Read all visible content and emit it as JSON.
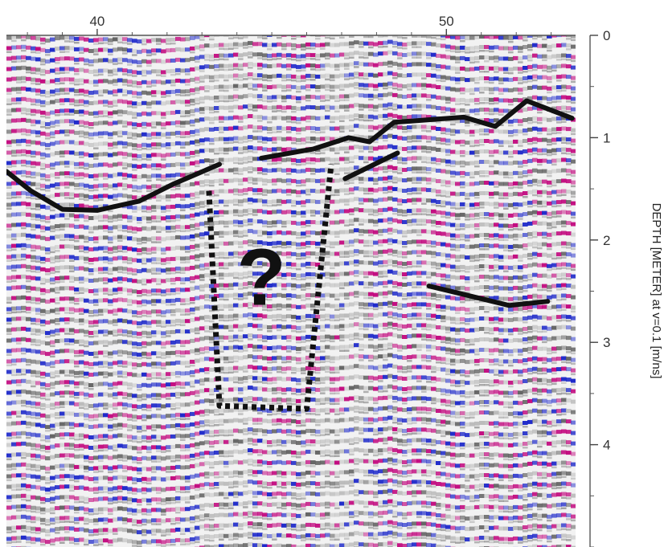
{
  "chart_data": {
    "type": "heatmap",
    "title": "",
    "xlabel": "",
    "ylabel": "DEPTH [METER] at v=0.1 [m/ns]",
    "x_ticks": [
      40,
      50
    ],
    "x_minor_step": 1,
    "xlim": [
      37.4,
      53.7
    ],
    "y_ticks": [
      0,
      1,
      2,
      3,
      4
    ],
    "y_minor_step": 0.5,
    "ylim": [
      0,
      5
    ],
    "grid": false,
    "colors": {
      "positive": "#c0007a",
      "negative": "#1420c8",
      "neutral": "#f2f2f2",
      "line": "#111111"
    },
    "interpreted_reflectors": [
      {
        "style": "solid",
        "points": [
          [
            37.4,
            1.33
          ],
          [
            38.1,
            1.52
          ],
          [
            39.0,
            1.7
          ],
          [
            40.0,
            1.71
          ],
          [
            41.2,
            1.62
          ],
          [
            42.2,
            1.45
          ],
          [
            43.5,
            1.26
          ]
        ]
      },
      {
        "style": "solid",
        "points": [
          [
            44.7,
            1.2
          ],
          [
            46.2,
            1.11
          ],
          [
            47.2,
            1.0
          ],
          [
            47.8,
            1.04
          ],
          [
            48.5,
            0.85
          ],
          [
            50.5,
            0.8
          ],
          [
            51.4,
            0.89
          ],
          [
            52.3,
            0.64
          ],
          [
            53.6,
            0.81
          ]
        ]
      },
      {
        "style": "solid",
        "points": [
          [
            47.1,
            1.4
          ],
          [
            48.6,
            1.15
          ]
        ]
      },
      {
        "style": "solid",
        "points": [
          [
            49.5,
            2.45
          ],
          [
            51.8,
            2.64
          ],
          [
            52.9,
            2.6
          ]
        ]
      },
      {
        "style": "dotted",
        "points": [
          [
            43.2,
            1.52
          ],
          [
            43.5,
            3.62
          ],
          [
            46.0,
            3.65
          ],
          [
            46.7,
            1.26
          ]
        ]
      }
    ],
    "annotations": [
      {
        "text": "?",
        "x": 44.7,
        "y": 2.35
      }
    ]
  }
}
